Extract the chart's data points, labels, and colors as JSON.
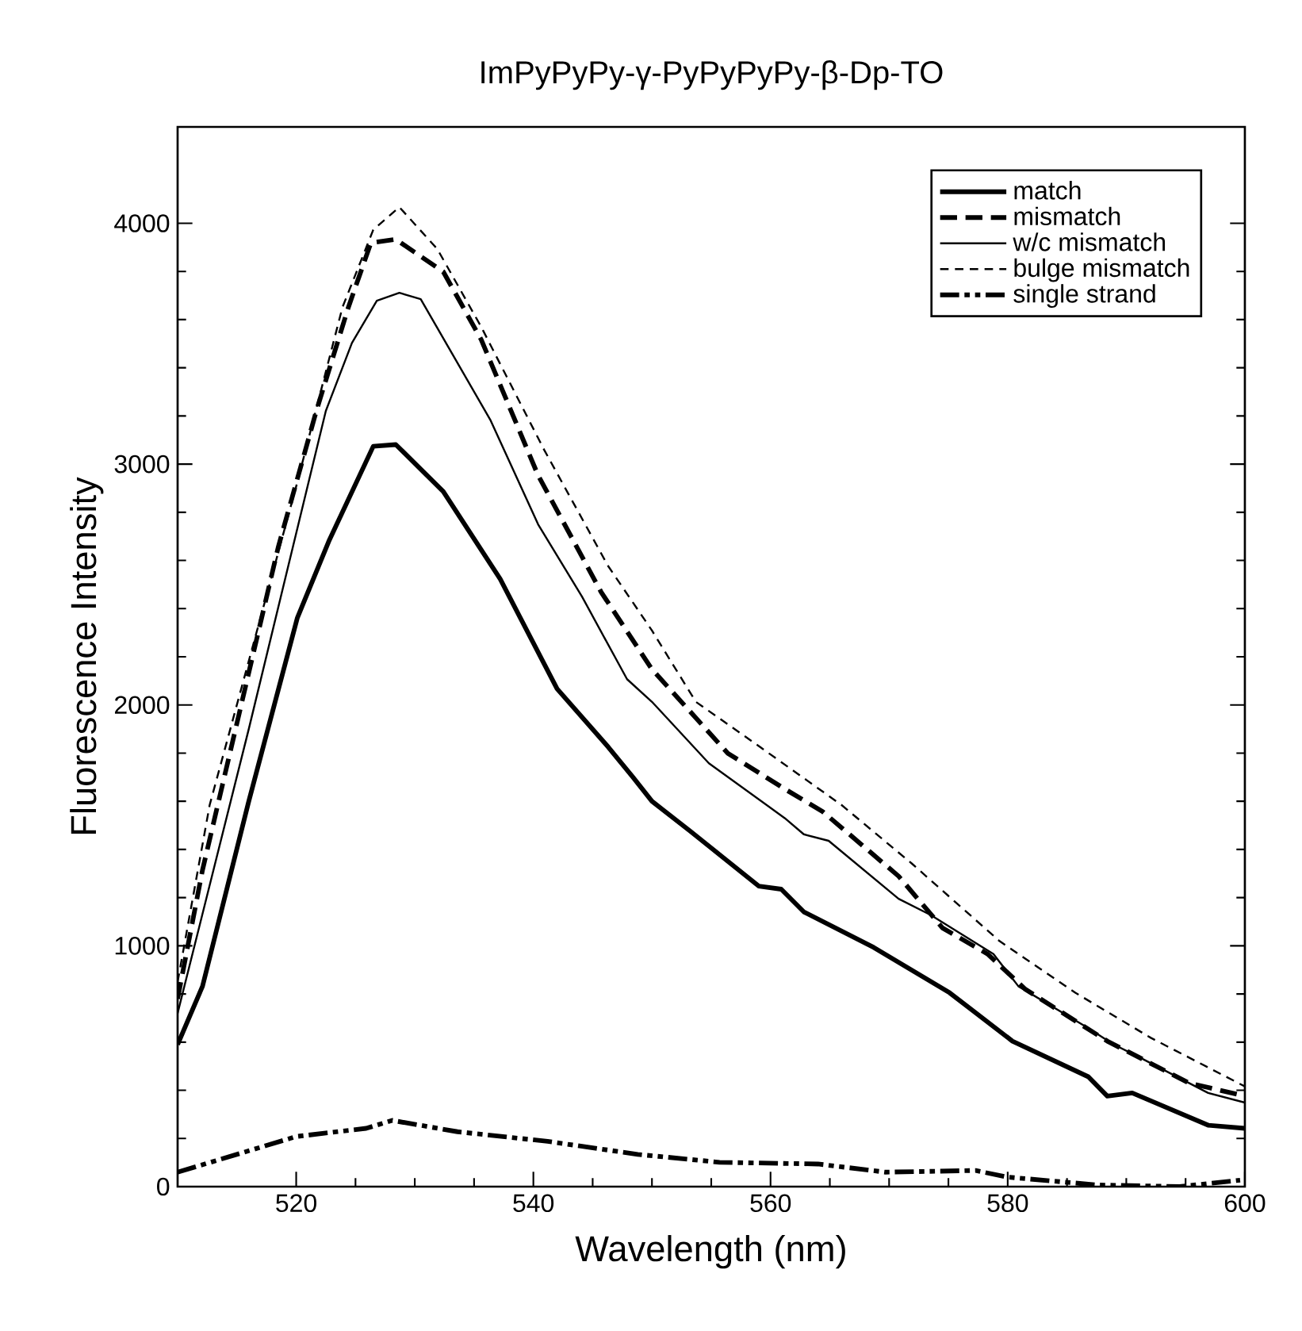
{
  "chart_data": {
    "type": "line",
    "title": "ImPyPyPy-γ-PyPyPyPy-β-Dp-TO",
    "xlabel": "Wavelength (nm)",
    "ylabel": "Fluorescence Intensity",
    "xlim": [
      510,
      600
    ],
    "ylim": [
      0,
      4400
    ],
    "xticks": [
      520,
      540,
      560,
      580,
      600
    ],
    "yticks": [
      0,
      1000,
      2000,
      3000,
      4000
    ],
    "legend": "top right",
    "grid": false,
    "marker": "none",
    "series": [
      {
        "name": "match",
        "color": "#000000",
        "line_style": "solid",
        "x": [
          510,
          512.1,
          516,
          520.1,
          522.8,
          526.5,
          528.4,
          532.4,
          537.2,
          542,
          546.3,
          548.4,
          550,
          553.2,
          559,
          560.9,
          562.8,
          568.7,
          575.1,
          580.4,
          586.8,
          588.4,
          590.5,
          596.9,
          600
        ],
        "values": [
          590,
          832,
          1600,
          2362,
          2685,
          3074,
          3081,
          2886,
          2523,
          2067,
          1826,
          1700,
          1600,
          1477,
          1248,
          1235,
          1141,
          993,
          805,
          604,
          456,
          376,
          389,
          255,
          242
        ]
      },
      {
        "name": "mismatch",
        "color": "#000000",
        "line_style": "dashed",
        "x": [
          510,
          512.1,
          515.3,
          518.5,
          521.7,
          524.4,
          526.3,
          528.4,
          532.4,
          535.6,
          540.4,
          545.7,
          550,
          556.4,
          561.2,
          564.4,
          570.8,
          574.5,
          578.3,
          581.5,
          588.4,
          595.3,
          600
        ],
        "values": [
          780,
          1315,
          1987,
          2658,
          3221,
          3651,
          3919,
          3933,
          3799,
          3517,
          2953,
          2470,
          2148,
          1799,
          1651,
          1557,
          1289,
          1074,
          966,
          819,
          604,
          430,
          376
        ]
      },
      {
        "name": "w/c mismatch",
        "color": "#000000",
        "line_style": "solid",
        "x": [
          510,
          516,
          522.5,
          524.7,
          526.8,
          528.7,
          530.5,
          536.4,
          540.4,
          544.1,
          547.9,
          550,
          554.8,
          561.2,
          562.8,
          564.9,
          570.8,
          573.5,
          578.8,
          580.9,
          586.8,
          588.9,
          591.1,
          596.9,
          600
        ],
        "values": [
          720,
          1900,
          3221,
          3503,
          3678,
          3711,
          3685,
          3181,
          2750,
          2450,
          2107,
          2013,
          1758,
          1530,
          1463,
          1436,
          1195,
          1128,
          966,
          832,
          658,
          591,
          537,
          389,
          349
        ]
      },
      {
        "name": "bulge mismatch",
        "color": "#000000",
        "line_style": "dashed",
        "x": [
          510,
          512.7,
          516.4,
          520.1,
          523.9,
          526.5,
          528.7,
          531.9,
          535.6,
          540.9,
          546.3,
          550,
          553.7,
          559.1,
          566,
          571.9,
          579.3,
          585.7,
          592.1,
          600
        ],
        "values": [
          850,
          1584,
          2255,
          2926,
          3651,
          3973,
          4067,
          3893,
          3570,
          3060,
          2577,
          2309,
          2013,
          1826,
          1584,
          1342,
          1020,
          805,
          617,
          416
        ]
      },
      {
        "name": "single strand",
        "color": "#000000",
        "line_style": "dashdotdotted",
        "x": [
          510,
          520,
          525.9,
          528.1,
          533.6,
          541.2,
          548.8,
          555.7,
          564,
          569.7,
          577.3,
          579.9,
          587.5,
          594.5,
          599.6
        ],
        "values": [
          60,
          208,
          242,
          275,
          228,
          188,
          134,
          101,
          94,
          60,
          67,
          40,
          7,
          0,
          27
        ]
      }
    ]
  }
}
